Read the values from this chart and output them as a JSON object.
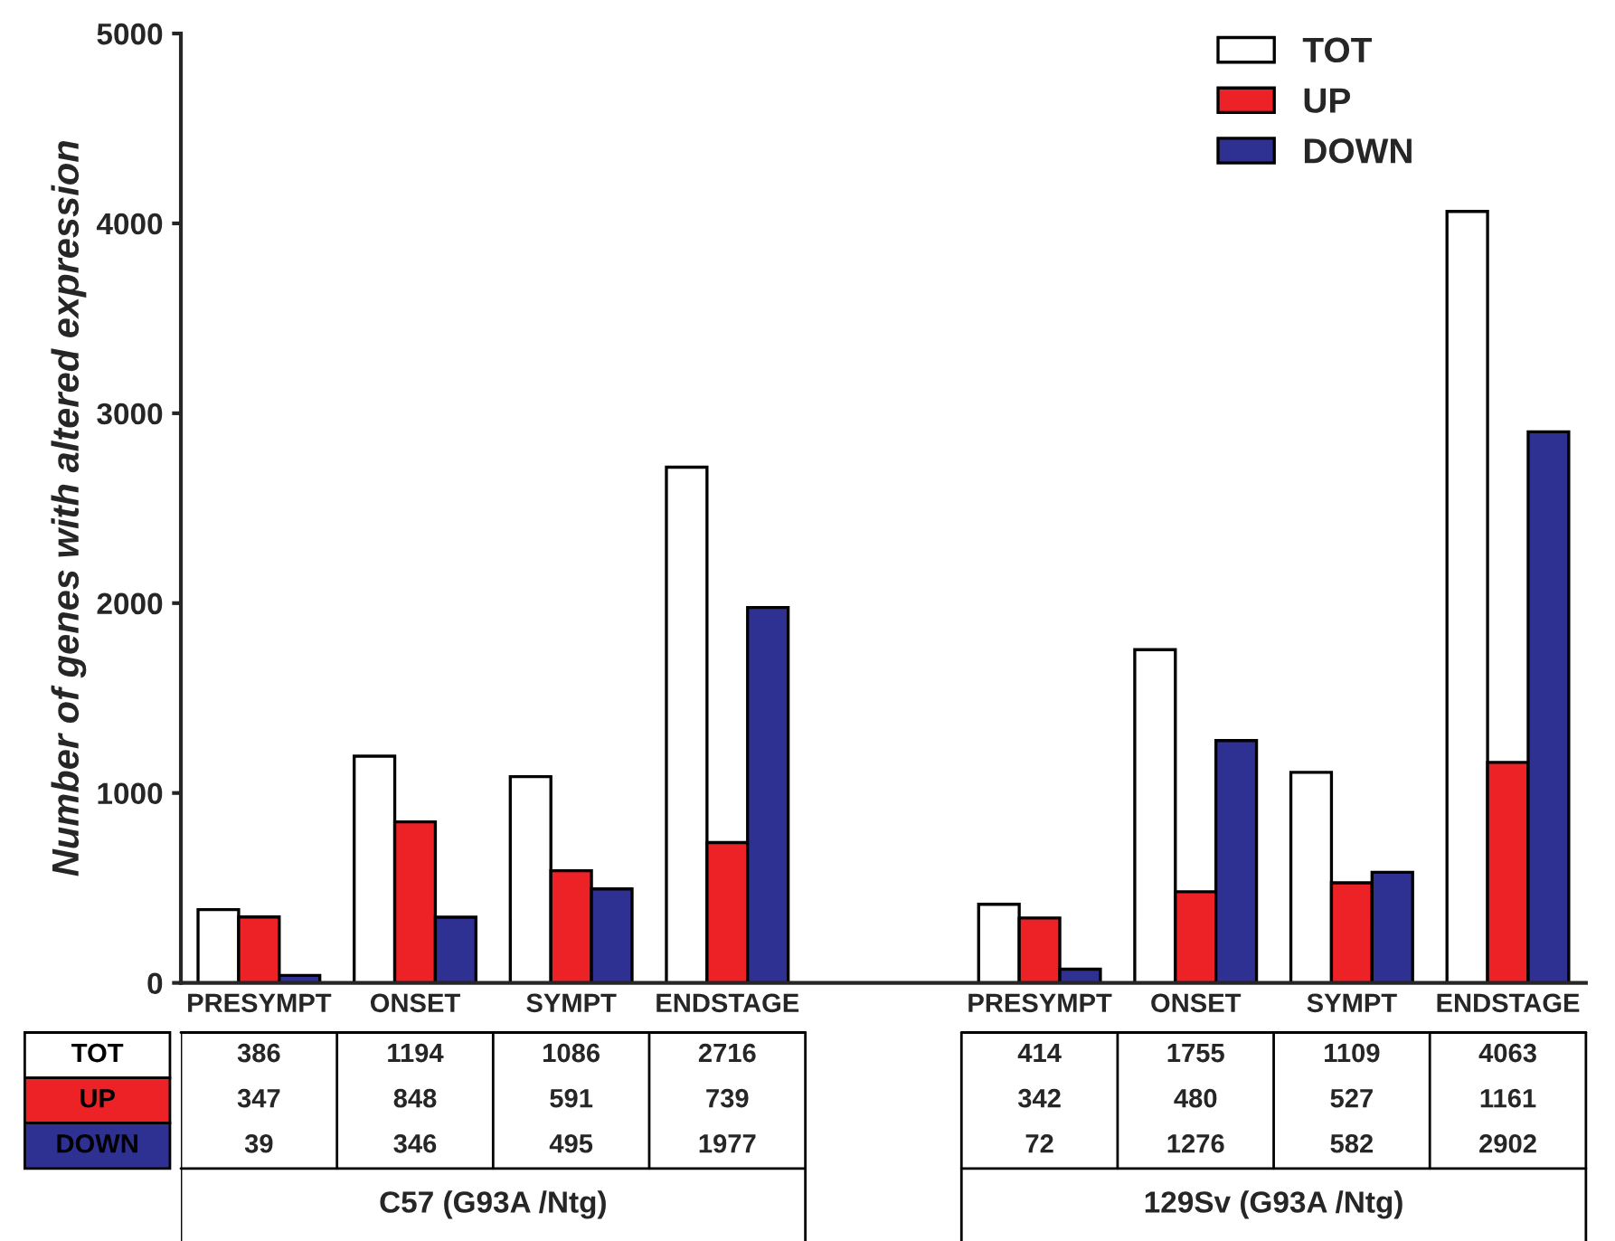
{
  "chart_data": {
    "type": "bar",
    "ylabel": "Number of genes with altered expression",
    "categories": [
      "PRESYMPT",
      "ONSET",
      "SYMPT",
      "ENDSTAGE",
      null,
      "PRESYMPT",
      "ONSET",
      "SYMPT",
      "ENDSTAGE"
    ],
    "series": [
      {
        "name": "TOT",
        "color": "#ffffff",
        "values": [
          386,
          1194,
          1086,
          2716,
          null,
          414,
          1755,
          1109,
          4063
        ]
      },
      {
        "name": "UP",
        "color": "#ec2227",
        "values": [
          347,
          848,
          591,
          739,
          null,
          342,
          480,
          527,
          1161
        ]
      },
      {
        "name": "DOWN",
        "color": "#2e3192",
        "values": [
          39,
          346,
          495,
          1977,
          null,
          72,
          1276,
          582,
          2902
        ]
      }
    ],
    "ylim": [
      0,
      5000
    ],
    "yticks": [
      0,
      1000,
      2000,
      3000,
      4000,
      5000
    ],
    "grid": false,
    "legend": "top right",
    "data_labels": true,
    "annotations": [
      "C57 (G93A /Ntg)",
      "129Sv (G93A /Ntg)"
    ]
  }
}
